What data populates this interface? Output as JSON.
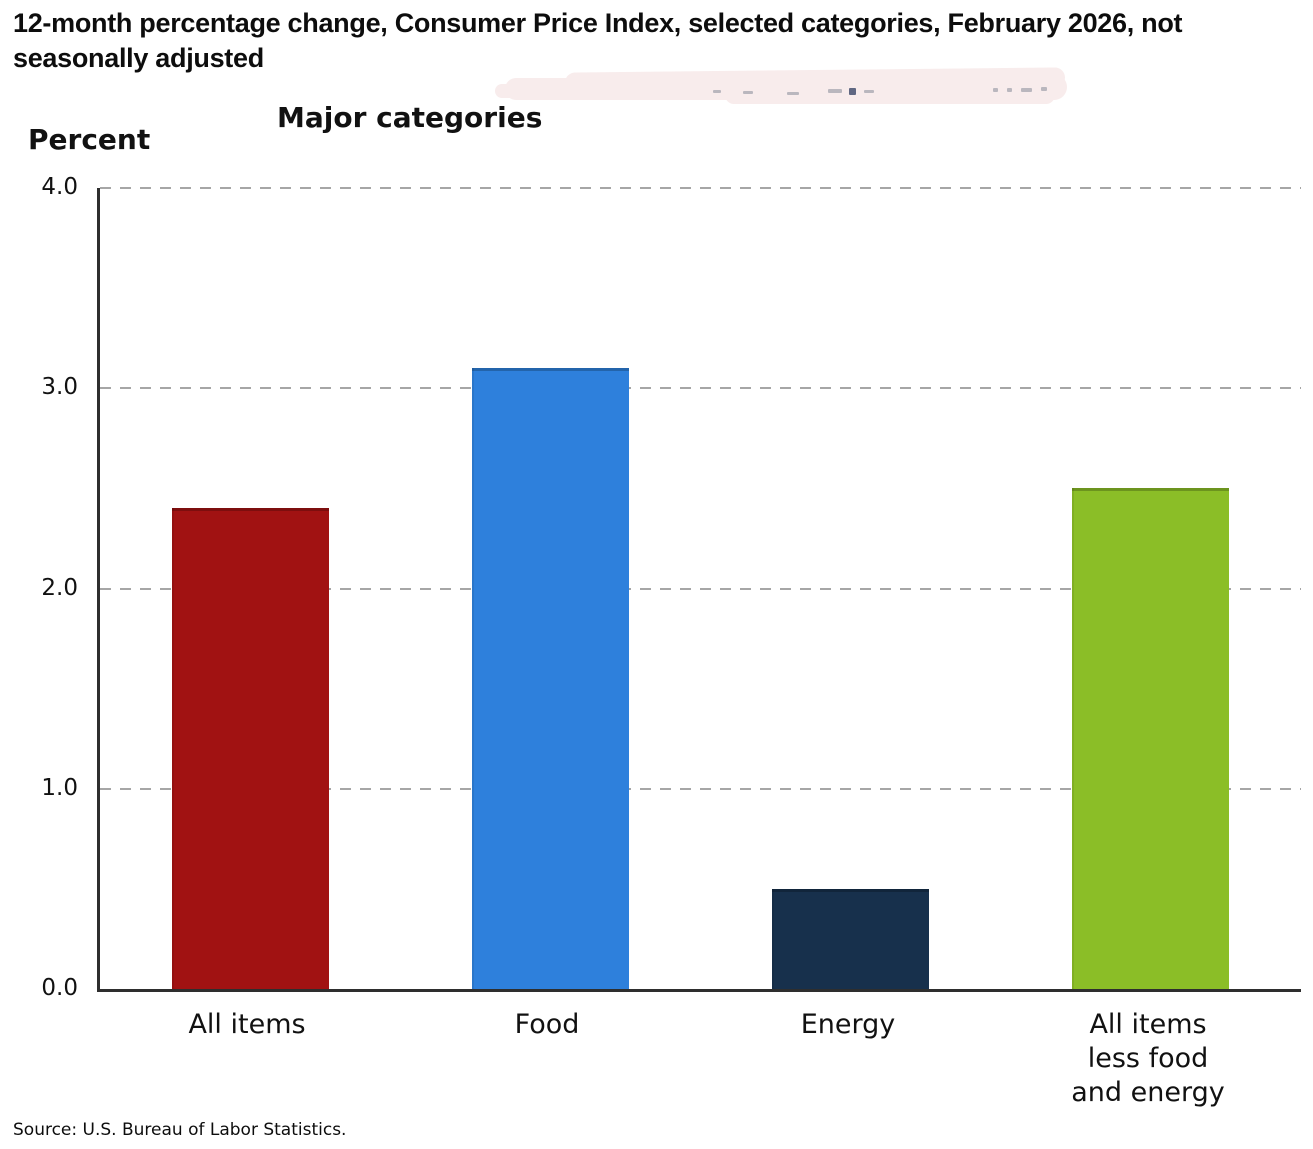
{
  "header": {
    "title": "12-month percentage change, Consumer Price Index, selected categories, February 2026, not seasonally adjusted",
    "subtitle": "Major categories",
    "y_unit_label": "Percent"
  },
  "chart_data": {
    "type": "bar",
    "title": "12-month percentage change, Consumer Price Index, selected categories, February 2026, not seasonally adjusted",
    "subtitle": "Major categories",
    "ylabel": "Percent",
    "ylim": [
      0.0,
      4.0
    ],
    "ytick_labels": [
      "4.0",
      "3.0",
      "2.0",
      "1.0",
      "0.0"
    ],
    "grid": "horizontal-dashed",
    "legend_position": "none",
    "categories": [
      "All items",
      "Food",
      "Energy",
      "All items less food and energy"
    ],
    "category_label_lines": [
      [
        "All items"
      ],
      [
        "Food"
      ],
      [
        "Energy"
      ],
      [
        "All items",
        "less food",
        "and energy"
      ]
    ],
    "values": [
      2.4,
      3.1,
      0.5,
      2.5
    ],
    "bar_colors": [
      "#a11212",
      "#2e80dc",
      "#17304c",
      "#8bbe27"
    ]
  },
  "annotations": {
    "whiteout_color": "#f8ecec"
  },
  "footer": {
    "source": "Source: U.S. Bureau of Labor Statistics."
  }
}
